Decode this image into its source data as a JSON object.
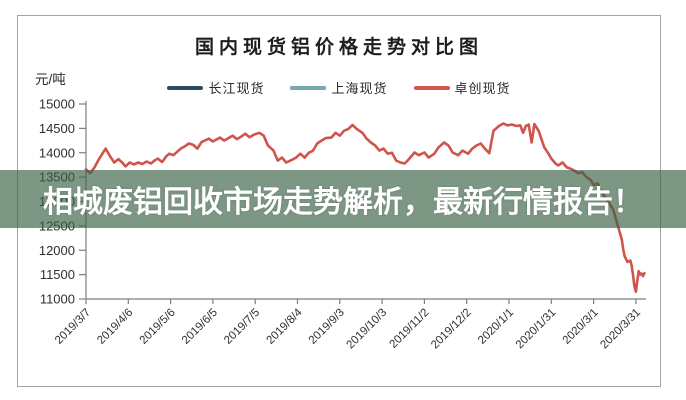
{
  "banner": {
    "text": "相城废铝回收市场走势解析，最新行情报告！",
    "background_rgba": "rgba(58, 97, 70, 0.66)",
    "text_color": "#ffffff"
  },
  "chart_data": {
    "type": "line",
    "title": "国内现货铝价格走势对比图",
    "ylabel": "元/吨",
    "xlabel": "",
    "ylim": [
      11000,
      15000
    ],
    "ytick_step": 500,
    "yticks": [
      15000,
      14500,
      14000,
      13500,
      13000,
      12500,
      12000,
      11500,
      11000
    ],
    "categories": [
      "2019/3/7",
      "2019/4/6",
      "2019/5/6",
      "2019/6/5",
      "2019/7/5",
      "2019/8/4",
      "2019/9/3",
      "2019/10/3",
      "2019/11/2",
      "2019/12/2",
      "2020/1/1",
      "2020/1/31",
      "2020/3/1",
      "2020/3/31"
    ],
    "days_per_tick": 30,
    "grid": false,
    "legend_position": "top",
    "legend": [
      {
        "name": "长江现货",
        "color": "#2d4b5e"
      },
      {
        "name": "上海现货",
        "color": "#78a7ae"
      },
      {
        "name": "卓创现货",
        "color": "#d0544b"
      }
    ],
    "series": [
      {
        "name": "卓创现货",
        "color": "#d0544b",
        "points": [
          [
            0,
            13660
          ],
          [
            3,
            13580
          ],
          [
            6,
            13700
          ],
          [
            9,
            13860
          ],
          [
            12,
            14000
          ],
          [
            14,
            14085
          ],
          [
            17,
            13930
          ],
          [
            20,
            13800
          ],
          [
            23,
            13870
          ],
          [
            26,
            13790
          ],
          [
            28,
            13720
          ],
          [
            31,
            13800
          ],
          [
            34,
            13760
          ],
          [
            37,
            13800
          ],
          [
            40,
            13770
          ],
          [
            43,
            13820
          ],
          [
            46,
            13780
          ],
          [
            49,
            13850
          ],
          [
            51,
            13880
          ],
          [
            54,
            13810
          ],
          [
            57,
            13930
          ],
          [
            59,
            13980
          ],
          [
            62,
            13950
          ],
          [
            65,
            14030
          ],
          [
            67,
            14080
          ],
          [
            70,
            14130
          ],
          [
            73,
            14190
          ],
          [
            76,
            14160
          ],
          [
            79,
            14085
          ],
          [
            82,
            14220
          ],
          [
            85,
            14260
          ],
          [
            87,
            14290
          ],
          [
            90,
            14230
          ],
          [
            93,
            14280
          ],
          [
            95,
            14310
          ],
          [
            98,
            14250
          ],
          [
            101,
            14300
          ],
          [
            104,
            14350
          ],
          [
            107,
            14280
          ],
          [
            110,
            14330
          ],
          [
            113,
            14390
          ],
          [
            116,
            14320
          ],
          [
            119,
            14370
          ],
          [
            123,
            14410
          ],
          [
            126,
            14350
          ],
          [
            129,
            14150
          ],
          [
            133,
            14045
          ],
          [
            136,
            13840
          ],
          [
            139,
            13900
          ],
          [
            142,
            13800
          ],
          [
            145,
            13840
          ],
          [
            149,
            13900
          ],
          [
            152,
            13980
          ],
          [
            155,
            13900
          ],
          [
            158,
            14000
          ],
          [
            161,
            14045
          ],
          [
            164,
            14190
          ],
          [
            167,
            14250
          ],
          [
            170,
            14300
          ],
          [
            174,
            14310
          ],
          [
            177,
            14410
          ],
          [
            180,
            14350
          ],
          [
            183,
            14450
          ],
          [
            186,
            14490
          ],
          [
            189,
            14570
          ],
          [
            192,
            14490
          ],
          [
            196,
            14410
          ],
          [
            199,
            14290
          ],
          [
            202,
            14210
          ],
          [
            205,
            14150
          ],
          [
            208,
            14045
          ],
          [
            211,
            14085
          ],
          [
            214,
            13980
          ],
          [
            217,
            14000
          ],
          [
            220,
            13840
          ],
          [
            223,
            13800
          ],
          [
            226,
            13780
          ],
          [
            229,
            13870
          ],
          [
            233,
            14005
          ],
          [
            236,
            13950
          ],
          [
            240,
            14005
          ],
          [
            243,
            13900
          ],
          [
            247,
            13980
          ],
          [
            250,
            14110
          ],
          [
            254,
            14210
          ],
          [
            257,
            14150
          ],
          [
            260,
            14005
          ],
          [
            264,
            13950
          ],
          [
            267,
            14045
          ],
          [
            271,
            13980
          ],
          [
            274,
            14085
          ],
          [
            277,
            14150
          ],
          [
            280,
            14190
          ],
          [
            283,
            14080
          ],
          [
            286,
            13990
          ],
          [
            289,
            14450
          ],
          [
            293,
            14550
          ],
          [
            296,
            14600
          ],
          [
            299,
            14560
          ],
          [
            302,
            14580
          ],
          [
            305,
            14550
          ],
          [
            308,
            14560
          ],
          [
            310,
            14410
          ],
          [
            312,
            14550
          ],
          [
            314,
            14580
          ],
          [
            316,
            14210
          ],
          [
            318,
            14590
          ],
          [
            321,
            14450
          ],
          [
            325,
            14110
          ],
          [
            328,
            13980
          ],
          [
            330,
            13880
          ],
          [
            333,
            13780
          ],
          [
            335,
            13740
          ],
          [
            338,
            13800
          ],
          [
            341,
            13700
          ],
          [
            343,
            13680
          ],
          [
            346,
            13640
          ],
          [
            349,
            13580
          ],
          [
            352,
            13600
          ],
          [
            355,
            13500
          ],
          [
            358,
            13440
          ],
          [
            360,
            13340
          ],
          [
            363,
            13370
          ],
          [
            365,
            13230
          ],
          [
            368,
            13090
          ],
          [
            371,
            12970
          ],
          [
            374,
            12830
          ],
          [
            376,
            12620
          ],
          [
            378,
            12420
          ],
          [
            380,
            12220
          ],
          [
            381,
            12020
          ],
          [
            382,
            11880
          ],
          [
            383,
            11820
          ],
          [
            384,
            11760
          ],
          [
            386,
            11790
          ],
          [
            387,
            11680
          ],
          [
            388,
            11480
          ],
          [
            389,
            11250
          ],
          [
            390,
            11150
          ],
          [
            391,
            11380
          ],
          [
            392,
            11570
          ],
          [
            393,
            11500
          ],
          [
            394,
            11520
          ],
          [
            395,
            11470
          ],
          [
            396,
            11530
          ]
        ]
      }
    ]
  }
}
